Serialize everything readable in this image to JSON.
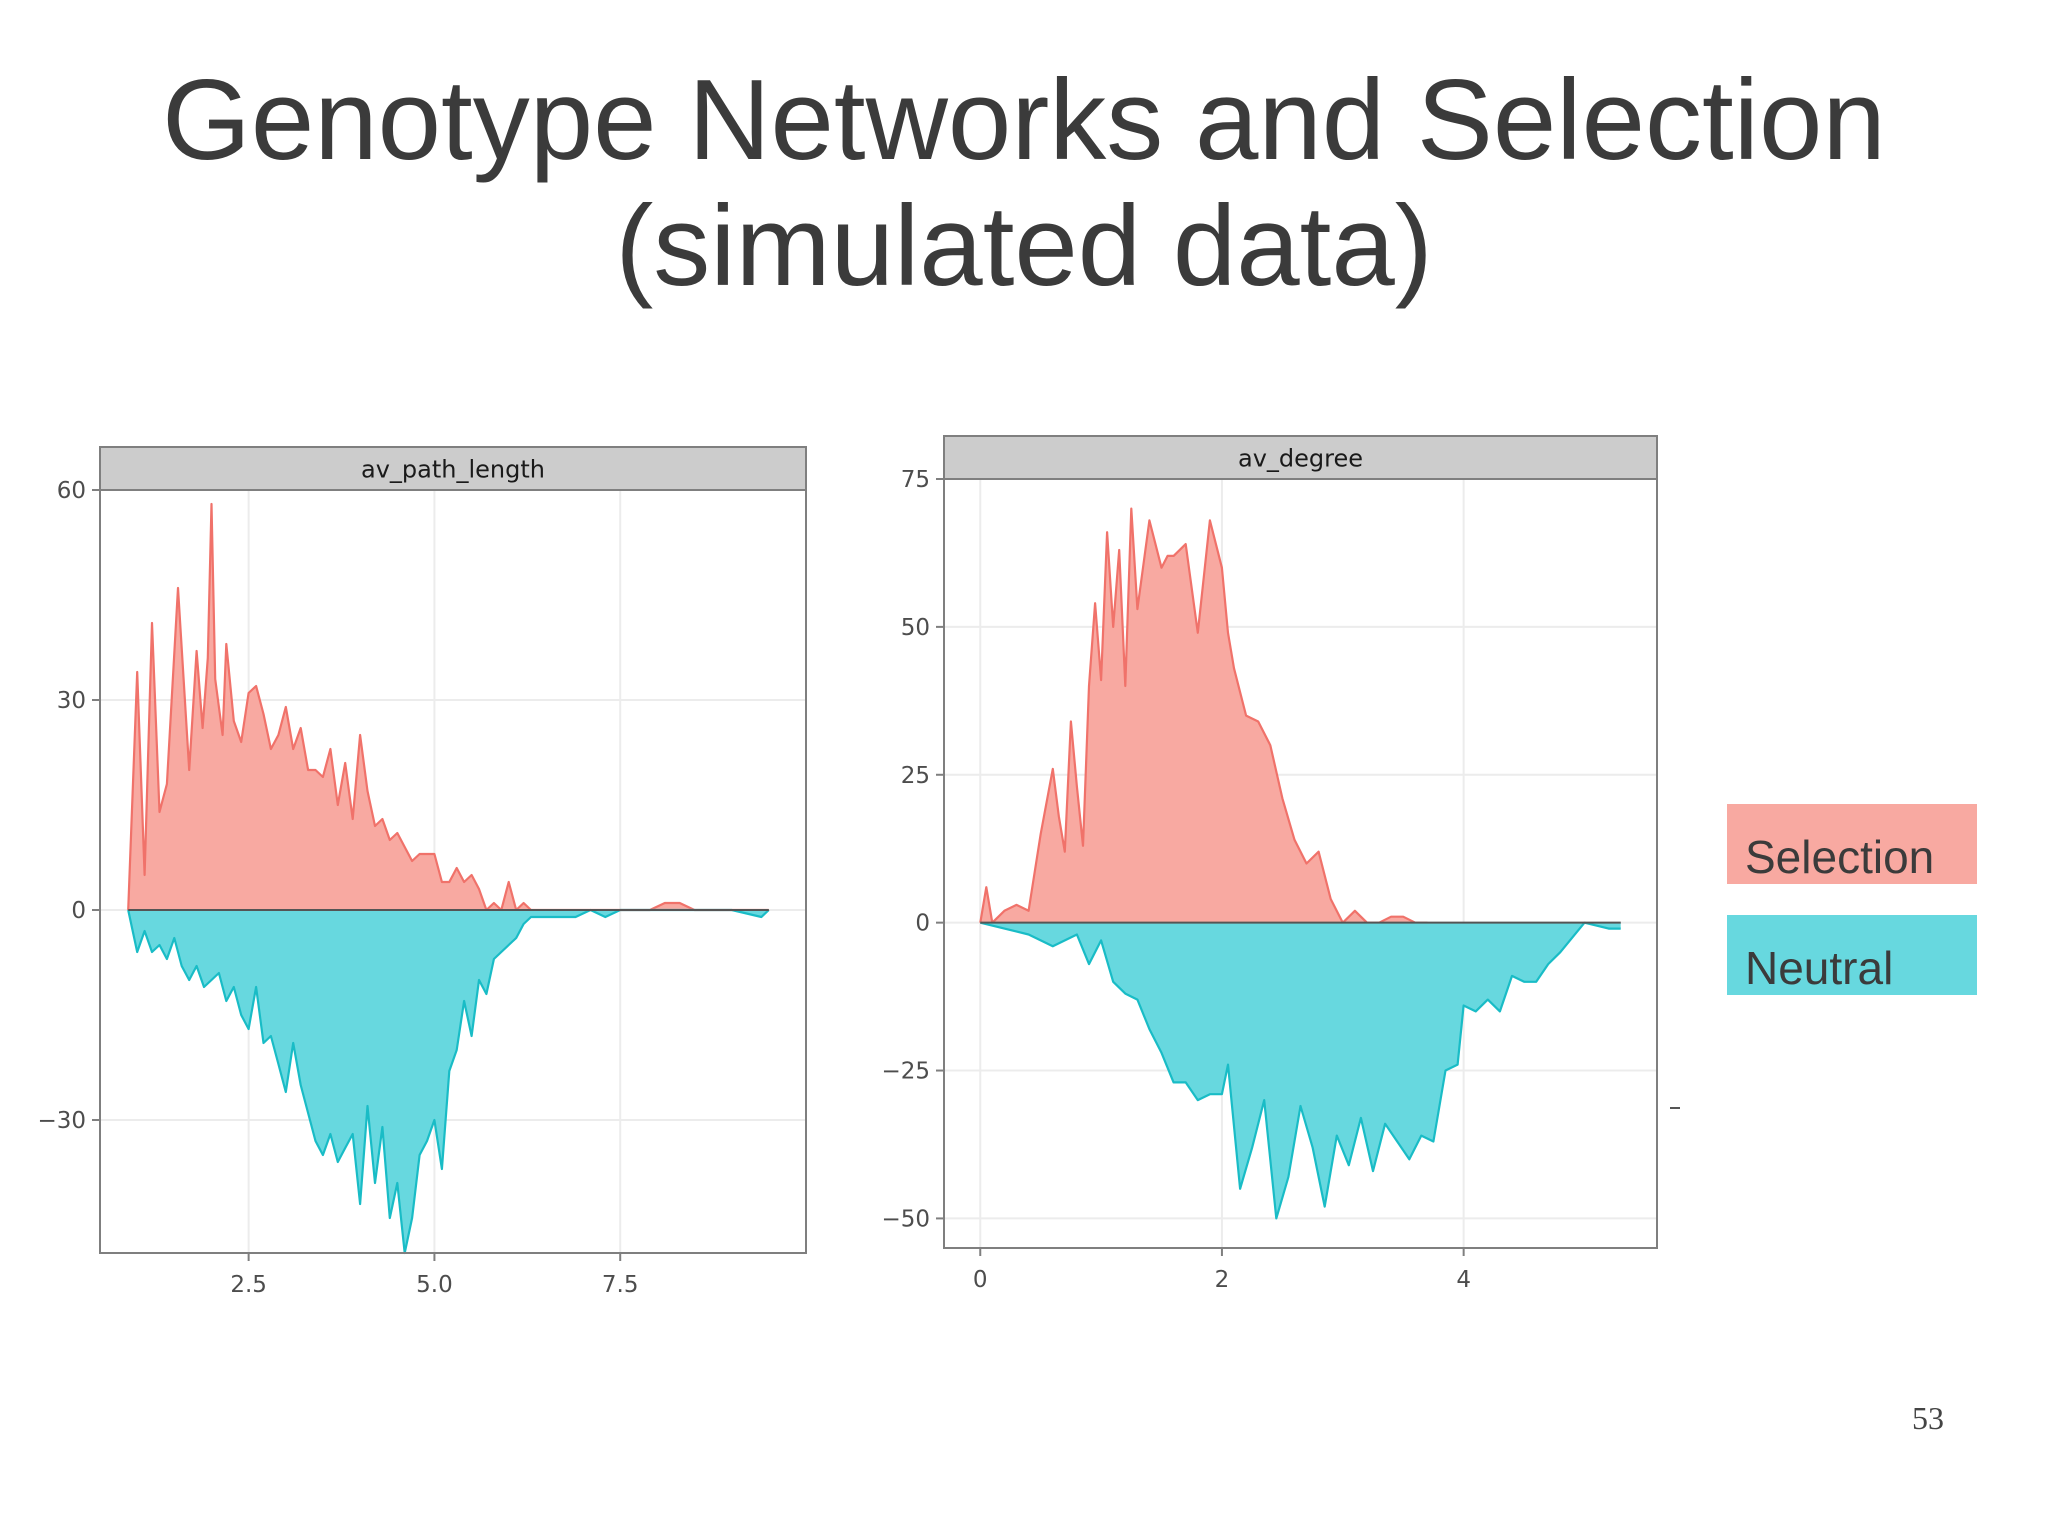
{
  "slide": {
    "title_line1": "Genotype Networks and Selection",
    "title_line2": "(simulated data)",
    "page_number": "53"
  },
  "legend": [
    {
      "label": "Selection",
      "color": "#f8a9a1"
    },
    {
      "label": "Neutral",
      "color": "#67d8df"
    }
  ],
  "colors": {
    "selection_fill": "#f8a9a1",
    "selection_line": "#f0726a",
    "neutral_fill": "#67d8df",
    "neutral_line": "#19bcc6",
    "panel_border": "#7f7f7f",
    "strip_fill": "#cccccc",
    "grid": "#ececec"
  },
  "chart_data": [
    {
      "type": "area",
      "title": "av_path_length",
      "xlim": [
        0.5,
        10.0
      ],
      "ylim": [
        -49,
        60
      ],
      "xticks": [
        2.5,
        5.0,
        7.5
      ],
      "xtick_labels": [
        "2.5",
        "5.0",
        "7.5"
      ],
      "yticks": [
        -30,
        0,
        30,
        60
      ],
      "ytick_labels": [
        "−30",
        "0",
        "30",
        "60"
      ],
      "grid": true,
      "series": [
        {
          "name": "Selection",
          "x": [
            0.88,
            1.0,
            1.1,
            1.2,
            1.3,
            1.4,
            1.55,
            1.7,
            1.8,
            1.88,
            1.95,
            2.0,
            2.05,
            2.15,
            2.2,
            2.3,
            2.4,
            2.5,
            2.6,
            2.7,
            2.8,
            2.9,
            3.0,
            3.1,
            3.2,
            3.3,
            3.4,
            3.5,
            3.6,
            3.7,
            3.8,
            3.9,
            4.0,
            4.1,
            4.2,
            4.3,
            4.4,
            4.5,
            4.6,
            4.7,
            4.8,
            4.9,
            5.0,
            5.1,
            5.2,
            5.3,
            5.4,
            5.5,
            5.6,
            5.7,
            5.8,
            5.9,
            6.0,
            6.1,
            6.2,
            6.3,
            6.5,
            6.7,
            6.9,
            7.1,
            7.3,
            7.5,
            7.7,
            7.9,
            8.1,
            8.3,
            8.5,
            9.0,
            9.5
          ],
          "y": [
            0,
            34,
            5,
            41,
            14,
            18,
            46,
            20,
            37,
            26,
            36,
            58,
            33,
            25,
            38,
            27,
            24,
            31,
            32,
            28,
            23,
            25,
            29,
            23,
            26,
            20,
            20,
            19,
            23,
            15,
            21,
            13,
            25,
            17,
            12,
            13,
            10,
            11,
            9,
            7,
            8,
            8,
            8,
            4,
            4,
            6,
            4,
            5,
            3,
            0,
            1,
            0,
            4,
            0,
            1,
            0,
            0,
            0,
            0,
            0,
            0,
            0,
            0,
            0,
            1,
            1,
            0,
            0,
            0
          ]
        },
        {
          "name": "Neutral",
          "x": [
            0.88,
            1.0,
            1.1,
            1.2,
            1.3,
            1.4,
            1.5,
            1.6,
            1.7,
            1.8,
            1.9,
            2.0,
            2.1,
            2.2,
            2.3,
            2.4,
            2.5,
            2.6,
            2.7,
            2.8,
            2.9,
            3.0,
            3.1,
            3.2,
            3.3,
            3.4,
            3.5,
            3.6,
            3.7,
            3.8,
            3.9,
            4.0,
            4.1,
            4.2,
            4.3,
            4.4,
            4.5,
            4.6,
            4.7,
            4.8,
            4.9,
            5.0,
            5.1,
            5.2,
            5.3,
            5.4,
            5.5,
            5.6,
            5.7,
            5.8,
            5.9,
            6.0,
            6.1,
            6.2,
            6.3,
            6.5,
            6.7,
            6.9,
            7.1,
            7.3,
            7.5,
            7.7,
            7.9,
            8.1,
            8.3,
            8.5,
            9.0,
            9.4,
            9.5
          ],
          "y": [
            0,
            -6,
            -3,
            -6,
            -5,
            -7,
            -4,
            -8,
            -10,
            -8,
            -11,
            -10,
            -9,
            -13,
            -11,
            -15,
            -17,
            -11,
            -19,
            -18,
            -22,
            -26,
            -19,
            -25,
            -29,
            -33,
            -35,
            -32,
            -36,
            -34,
            -32,
            -42,
            -28,
            -39,
            -31,
            -44,
            -39,
            -49,
            -44,
            -35,
            -33,
            -30,
            -37,
            -23,
            -20,
            -13,
            -18,
            -10,
            -12,
            -7,
            -6,
            -5,
            -4,
            -2,
            -1,
            -1,
            -1,
            -1,
            0,
            -1,
            0,
            0,
            0,
            0,
            0,
            0,
            0,
            -1,
            0
          ]
        }
      ]
    },
    {
      "type": "area",
      "title": "av_degree",
      "xlim": [
        -0.3,
        5.6
      ],
      "ylim": [
        -55,
        75
      ],
      "xticks": [
        0,
        2,
        4
      ],
      "xtick_labels": [
        "0",
        "2",
        "4"
      ],
      "yticks": [
        -50,
        -25,
        0,
        25,
        50,
        75
      ],
      "ytick_labels": [
        "−50",
        "−25",
        "0",
        "25",
        "50",
        "75"
      ],
      "grid": true,
      "series": [
        {
          "name": "Selection",
          "x": [
            0,
            0.05,
            0.1,
            0.2,
            0.3,
            0.4,
            0.5,
            0.6,
            0.65,
            0.7,
            0.75,
            0.8,
            0.85,
            0.9,
            0.95,
            1.0,
            1.05,
            1.1,
            1.15,
            1.2,
            1.25,
            1.3,
            1.4,
            1.5,
            1.55,
            1.6,
            1.7,
            1.8,
            1.9,
            2.0,
            2.05,
            2.1,
            2.2,
            2.3,
            2.4,
            2.5,
            2.6,
            2.7,
            2.8,
            2.9,
            3.0,
            3.1,
            3.2,
            3.3,
            3.4,
            3.5,
            3.6,
            3.7
          ],
          "y": [
            0,
            6,
            0,
            2,
            3,
            2,
            15,
            26,
            18,
            12,
            34,
            23,
            13,
            40,
            54,
            41,
            66,
            50,
            63,
            40,
            70,
            53,
            68,
            60,
            62,
            62,
            64,
            49,
            68,
            60,
            49,
            43,
            35,
            34,
            30,
            21,
            14,
            10,
            12,
            4,
            0,
            2,
            0,
            0,
            1,
            1,
            0,
            0
          ]
        },
        {
          "name": "Neutral",
          "x": [
            0,
            0.2,
            0.4,
            0.6,
            0.8,
            0.9,
            1.0,
            1.1,
            1.2,
            1.3,
            1.4,
            1.5,
            1.6,
            1.7,
            1.8,
            1.9,
            2.0,
            2.05,
            2.15,
            2.25,
            2.35,
            2.45,
            2.55,
            2.65,
            2.75,
            2.85,
            2.95,
            3.05,
            3.15,
            3.25,
            3.35,
            3.45,
            3.55,
            3.65,
            3.75,
            3.85,
            3.95,
            4.0,
            4.1,
            4.2,
            4.3,
            4.4,
            4.5,
            4.6,
            4.7,
            4.8,
            5.0,
            5.2,
            5.3
          ],
          "y": [
            0,
            -1,
            -2,
            -4,
            -2,
            -7,
            -3,
            -10,
            -12,
            -13,
            -18,
            -22,
            -27,
            -27,
            -30,
            -29,
            -29,
            -24,
            -45,
            -38,
            -30,
            -50,
            -43,
            -31,
            -38,
            -48,
            -36,
            -41,
            -33,
            -42,
            -34,
            -37,
            -40,
            -36,
            -37,
            -25,
            -24,
            -14,
            -15,
            -13,
            -15,
            -9,
            -10,
            -10,
            -7,
            -5,
            0,
            -1,
            -1
          ]
        }
      ]
    }
  ]
}
